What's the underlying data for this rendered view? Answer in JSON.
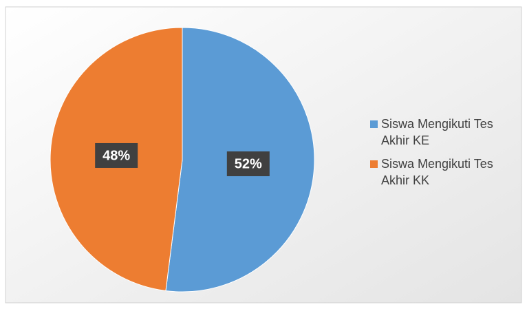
{
  "chart_data": {
    "type": "pie",
    "categories": [
      "Siswa Mengikuti Tes Akhir KE",
      "Siswa Mengikuti Tes Akhir KK"
    ],
    "values": [
      52,
      48
    ],
    "value_labels": [
      "52%",
      "48%"
    ],
    "colors": [
      "#5b9bd5",
      "#ed7d31"
    ]
  }
}
